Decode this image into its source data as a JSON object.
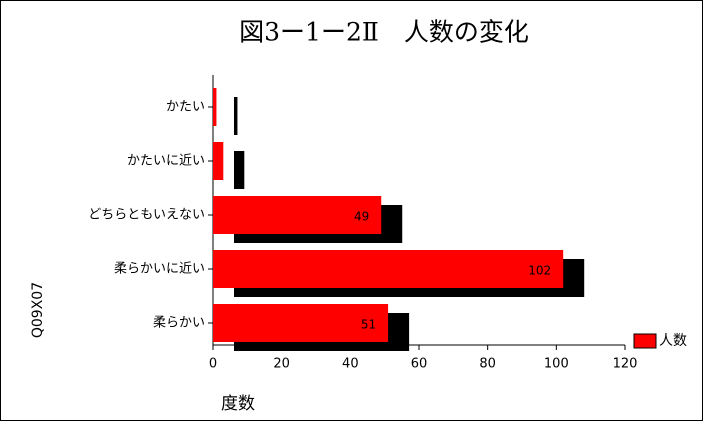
{
  "chart_data": {
    "type": "hbar",
    "title": "図3ー1ー2Ⅱ　人数の変化",
    "x_label": "度数",
    "y_label": "Q09X07",
    "categories": [
      "かたい",
      "かたいに近い",
      "どちらともいえない",
      "柔らかいに近い",
      "柔らかい"
    ],
    "series": [
      {
        "name": "人数",
        "color": "#ff0000",
        "values": [
          1,
          3,
          49,
          102,
          51
        ],
        "value_labels": [
          null,
          null,
          "49",
          "102",
          "51"
        ]
      }
    ],
    "xlim": [
      0,
      120
    ],
    "xticks": [
      0,
      20,
      40,
      60,
      80,
      100,
      120
    ],
    "shadow_color": "#000000",
    "legend": "bottom-right"
  }
}
